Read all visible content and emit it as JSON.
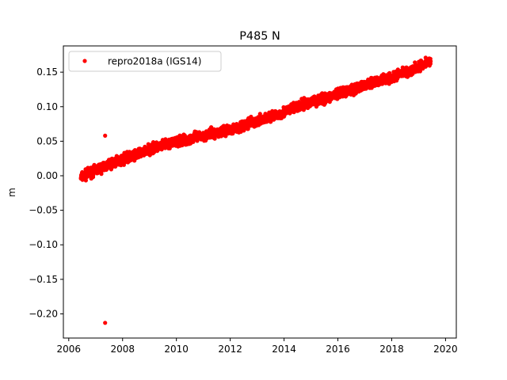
{
  "chart_data": {
    "type": "scatter",
    "title": "P485 N",
    "xlabel": "",
    "ylabel": "m",
    "xlim": [
      2005.8,
      2020.4
    ],
    "ylim": [
      -0.235,
      0.188
    ],
    "x_ticks": [
      2006,
      2008,
      2010,
      2012,
      2014,
      2016,
      2018,
      2020
    ],
    "y_ticks": [
      -0.2,
      -0.15,
      -0.1,
      -0.05,
      0.0,
      0.05,
      0.1,
      0.15
    ],
    "x_tick_labels": [
      "2006",
      "2008",
      "2010",
      "2012",
      "2014",
      "2016",
      "2018",
      "2020"
    ],
    "y_tick_labels": [
      "−0.20",
      "−0.15",
      "−0.10",
      "−0.05",
      "0.00",
      "0.05",
      "0.10",
      "0.15"
    ],
    "grid": false,
    "legend_position": "top-left",
    "series": [
      {
        "name": "repro2018a (IGS14)",
        "color": "#ff0000",
        "marker": "circle",
        "trend": {
          "x_start": 2006.45,
          "x_end": 2019.45,
          "points": [
            [
              2006.45,
              -0.002
            ],
            [
              2007.0,
              0.008
            ],
            [
              2008.0,
              0.024
            ],
            [
              2009.0,
              0.038
            ],
            [
              2010.0,
              0.049
            ],
            [
              2011.0,
              0.058
            ],
            [
              2012.0,
              0.067
            ],
            [
              2013.0,
              0.079
            ],
            [
              2014.0,
              0.092
            ],
            [
              2015.0,
              0.107
            ],
            [
              2016.0,
              0.118
            ],
            [
              2017.0,
              0.131
            ],
            [
              2018.0,
              0.143
            ],
            [
              2019.0,
              0.158
            ],
            [
              2019.45,
              0.166
            ]
          ],
          "scatter": 0.005
        },
        "outliers": [
          {
            "x": 2007.35,
            "y": 0.058
          },
          {
            "x": 2007.35,
            "y": -0.213
          }
        ]
      }
    ]
  }
}
